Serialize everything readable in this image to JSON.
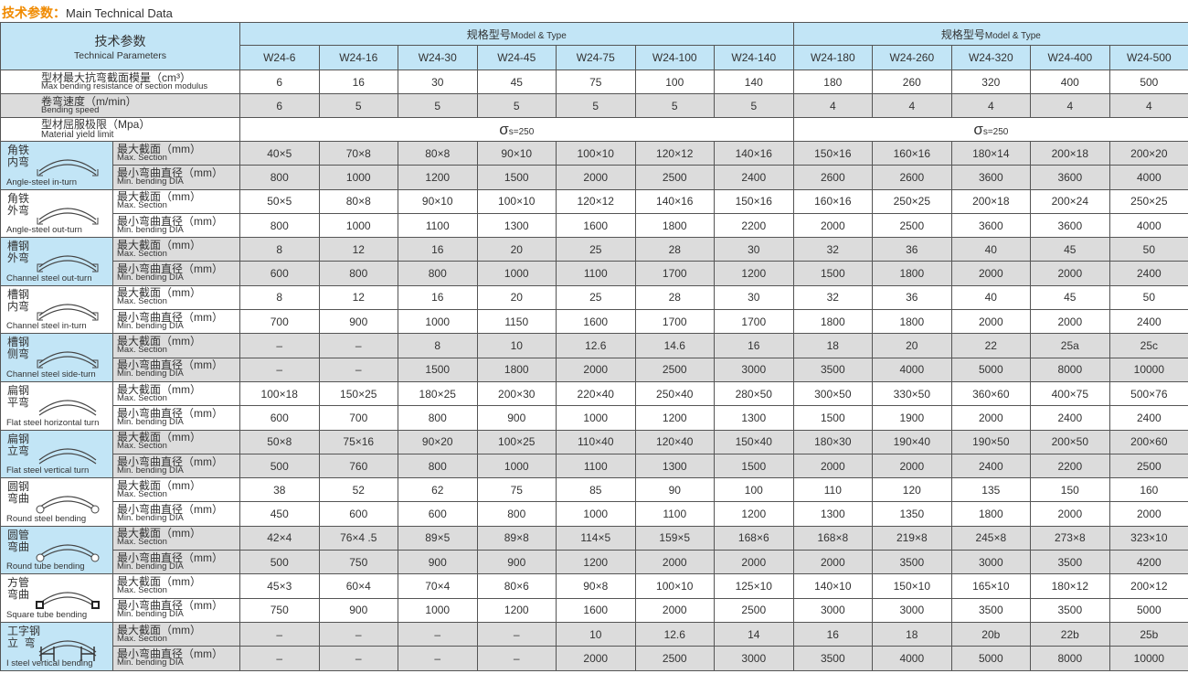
{
  "title": {
    "cn": "技术参数：",
    "en": "Main Technical Data"
  },
  "header": {
    "param_cn": "技术参数",
    "param_en": "Technical Parameters",
    "group_cn": "规格型号",
    "group_en": "Model & Type",
    "models": [
      "W24-6",
      "W24-16",
      "W24-30",
      "W24-45",
      "W24-75",
      "W24-100",
      "W24-140",
      "W24-180",
      "W24-260",
      "W24-320",
      "W24-400",
      "W24-500"
    ]
  },
  "general": [
    {
      "cn": "型材最大抗弯截面模量（cm³）",
      "en": "Max bending resistance of section modulus",
      "values": [
        "6",
        "16",
        "30",
        "45",
        "75",
        "100",
        "140",
        "180",
        "260",
        "320",
        "400",
        "500"
      ]
    },
    {
      "cn": "卷弯速度（m/min）",
      "en": "Bending speed",
      "values": [
        "6",
        "5",
        "5",
        "5",
        "5",
        "5",
        "5",
        "4",
        "4",
        "4",
        "4",
        "4"
      ]
    }
  ],
  "yield": {
    "cn": "型材屈服极限（Mpa）",
    "en": "Material yield limit",
    "sigma": "σ",
    "sub": "s=250"
  },
  "sub_labels": {
    "max_cn": "最大截面（mm）",
    "max_en": "Max. Section",
    "min_cn": "最小弯曲直径（mm）",
    "min_en": "Min. bending DIA"
  },
  "colors": {
    "header_blue": "#c2e5f6",
    "row_gray": "#dcdcdc",
    "title_orange": "#f08a00"
  },
  "categories": [
    {
      "cn": "角铁\n内弯",
      "en": "Angle-steel in-turn",
      "icon": "angle-in-icon",
      "max": [
        "40×5",
        "70×8",
        "80×8",
        "90×10",
        "100×10",
        "120×12",
        "140×16",
        "150×16",
        "160×16",
        "180×14",
        "200×18",
        "200×20"
      ],
      "min": [
        "800",
        "1000",
        "1200",
        "1500",
        "2000",
        "2500",
        "2400",
        "2600",
        "2600",
        "3600",
        "3600",
        "4000"
      ]
    },
    {
      "cn": "角铁\n外弯",
      "en": "Angle-steel out-turn",
      "icon": "angle-out-icon",
      "max": [
        "50×5",
        "80×8",
        "90×10",
        "100×10",
        "120×12",
        "140×16",
        "150×16",
        "160×16",
        "250×25",
        "200×18",
        "200×24",
        "250×25"
      ],
      "min": [
        "800",
        "1000",
        "1100",
        "1300",
        "1600",
        "1800",
        "2200",
        "2000",
        "2500",
        "3600",
        "3600",
        "4000"
      ]
    },
    {
      "cn": "槽钢\n外弯",
      "en": "Channel steel out-turn",
      "icon": "channel-out-icon",
      "max": [
        "8",
        "12",
        "16",
        "20",
        "25",
        "28",
        "30",
        "32",
        "36",
        "40",
        "45",
        "50"
      ],
      "min": [
        "600",
        "800",
        "800",
        "1000",
        "1100",
        "1700",
        "1200",
        "1500",
        "1800",
        "2000",
        "2000",
        "2400"
      ]
    },
    {
      "cn": "槽钢\n内弯",
      "en": "Channel steel in-turn",
      "icon": "channel-in-icon",
      "max": [
        "8",
        "12",
        "16",
        "20",
        "25",
        "28",
        "30",
        "32",
        "36",
        "40",
        "45",
        "50"
      ],
      "min": [
        "700",
        "900",
        "1000",
        "1150",
        "1600",
        "1700",
        "1700",
        "1800",
        "1800",
        "2000",
        "2000",
        "2400"
      ]
    },
    {
      "cn": "槽钢\n侧弯",
      "en": "Channel steel side-turn",
      "icon": "channel-side-icon",
      "max": [
        "–",
        "–",
        "8",
        "10",
        "12.6",
        "14.6",
        "16",
        "18",
        "20",
        "22",
        "25a",
        "25c"
      ],
      "min": [
        "–",
        "–",
        "1500",
        "1800",
        "2000",
        "2500",
        "3000",
        "3500",
        "4000",
        "5000",
        "8000",
        "10000"
      ]
    },
    {
      "cn": "扁钢\n平弯",
      "en": "Flat steel horizontal turn",
      "icon": "flat-horizontal-icon",
      "max": [
        "100×18",
        "150×25",
        "180×25",
        "200×30",
        "220×40",
        "250×40",
        "280×50",
        "300×50",
        "330×50",
        "360×60",
        "400×75",
        "500×76"
      ],
      "min": [
        "600",
        "700",
        "800",
        "900",
        "1000",
        "1200",
        "1300",
        "1500",
        "1900",
        "2000",
        "2400",
        "2400"
      ]
    },
    {
      "cn": "扁钢\n立弯",
      "en": "Flat steel vertical turn",
      "icon": "flat-vertical-icon",
      "max": [
        "50×8",
        "75×16",
        "90×20",
        "100×25",
        "110×40",
        "120×40",
        "150×40",
        "180×30",
        "190×40",
        "190×50",
        "200×50",
        "200×60"
      ],
      "min": [
        "500",
        "760",
        "800",
        "1000",
        "1100",
        "1300",
        "1500",
        "2000",
        "2000",
        "2400",
        "2200",
        "2500"
      ]
    },
    {
      "cn": "圆钢\n弯曲",
      "en": "Round steel bending",
      "icon": "round-steel-icon",
      "max": [
        "38",
        "52",
        "62",
        "75",
        "85",
        "90",
        "100",
        "110",
        "120",
        "135",
        "150",
        "160"
      ],
      "min": [
        "450",
        "600",
        "600",
        "800",
        "1000",
        "1100",
        "1200",
        "1300",
        "1350",
        "1800",
        "2000",
        "2000"
      ]
    },
    {
      "cn": "圆管\n弯曲",
      "en": "Round tube bending",
      "icon": "round-tube-icon",
      "max": [
        "42×4",
        "76×4 .5",
        "89×5",
        "89×8",
        "114×5",
        "159×5",
        "168×6",
        "168×8",
        "219×8",
        "245×8",
        "273×8",
        "323×10"
      ],
      "min": [
        "500",
        "750",
        "900",
        "900",
        "1200",
        "2000",
        "2000",
        "2000",
        "3500",
        "3000",
        "3500",
        "4200"
      ]
    },
    {
      "cn": "方管\n弯曲",
      "en": "Square tube bending",
      "icon": "square-tube-icon",
      "max": [
        "45×3",
        "60×4",
        "70×4",
        "80×6",
        "90×8",
        "100×10",
        "125×10",
        "140×10",
        "150×10",
        "165×10",
        "180×12",
        "200×12"
      ],
      "min": [
        "750",
        "900",
        "1000",
        "1200",
        "1600",
        "2000",
        "2500",
        "3000",
        "3000",
        "3500",
        "3500",
        "5000"
      ]
    },
    {
      "cn": "工字钢\n立  弯",
      "en": "I steel vertical bending",
      "icon": "i-steel-icon",
      "max": [
        "–",
        "–",
        "–",
        "–",
        "10",
        "12.6",
        "14",
        "16",
        "18",
        "20b",
        "22b",
        "25b"
      ],
      "min": [
        "–",
        "–",
        "–",
        "–",
        "2000",
        "2500",
        "3000",
        "3500",
        "4000",
        "5000",
        "8000",
        "10000"
      ]
    }
  ]
}
